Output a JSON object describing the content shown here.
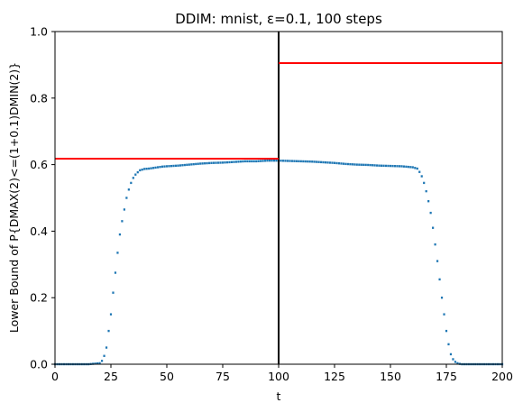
{
  "chart_data": {
    "type": "scatter",
    "title": "DDIM: mnist, ε=0.1, 100 steps",
    "xlabel": "t",
    "ylabel": "Lower Bound of P{DMAX(2)<=(1+0.1)DMIN(2)}",
    "xlim": [
      0,
      200
    ],
    "ylim": [
      0,
      1.0
    ],
    "xticks": [
      "0",
      "25",
      "50",
      "75",
      "100",
      "125",
      "150",
      "175",
      "200"
    ],
    "yticks": [
      "0.0",
      "0.2",
      "0.4",
      "0.6",
      "0.8",
      "1.0"
    ],
    "grid": false,
    "colors": {
      "points": "#1f77b4",
      "hlines": "#ff0000",
      "vline": "#000000"
    },
    "series": [
      {
        "x": [
          0,
          5,
          10,
          15,
          20,
          21,
          22,
          23,
          24,
          25,
          26,
          27,
          28,
          29,
          30,
          31,
          32,
          33,
          34,
          35,
          36,
          37,
          38,
          39,
          40,
          42,
          44,
          46,
          48,
          50,
          55,
          60,
          65,
          70,
          75,
          80,
          85,
          90,
          95,
          100,
          105,
          110,
          115,
          120,
          125,
          130,
          135,
          140,
          145,
          150,
          155,
          160,
          162,
          163,
          164,
          165,
          166,
          167,
          168,
          169,
          170,
          171,
          172,
          173,
          174,
          175,
          176,
          177,
          178,
          179,
          180,
          181,
          182,
          183,
          185,
          190,
          195,
          200
        ],
        "y": [
          0.0,
          0.0,
          0.0,
          0.0,
          0.003,
          0.01,
          0.025,
          0.05,
          0.1,
          0.15,
          0.215,
          0.275,
          0.335,
          0.39,
          0.43,
          0.465,
          0.5,
          0.525,
          0.545,
          0.56,
          0.57,
          0.577,
          0.583,
          0.585,
          0.587,
          0.588,
          0.59,
          0.592,
          0.594,
          0.595,
          0.597,
          0.6,
          0.603,
          0.605,
          0.606,
          0.608,
          0.61,
          0.61,
          0.612,
          0.612,
          0.611,
          0.61,
          0.609,
          0.607,
          0.605,
          0.602,
          0.6,
          0.599,
          0.597,
          0.596,
          0.595,
          0.592,
          0.588,
          0.578,
          0.565,
          0.545,
          0.52,
          0.49,
          0.455,
          0.41,
          0.36,
          0.31,
          0.255,
          0.2,
          0.15,
          0.1,
          0.06,
          0.03,
          0.015,
          0.007,
          0.003,
          0.001,
          0.0,
          0.0,
          0.0,
          0.0,
          0.0,
          0.0
        ]
      }
    ],
    "hlines": [
      {
        "y": 0.618,
        "xmin": 0,
        "xmax": 100
      },
      {
        "y": 0.905,
        "xmin": 100,
        "xmax": 200
      }
    ],
    "vlines": [
      {
        "x": 100
      }
    ]
  }
}
